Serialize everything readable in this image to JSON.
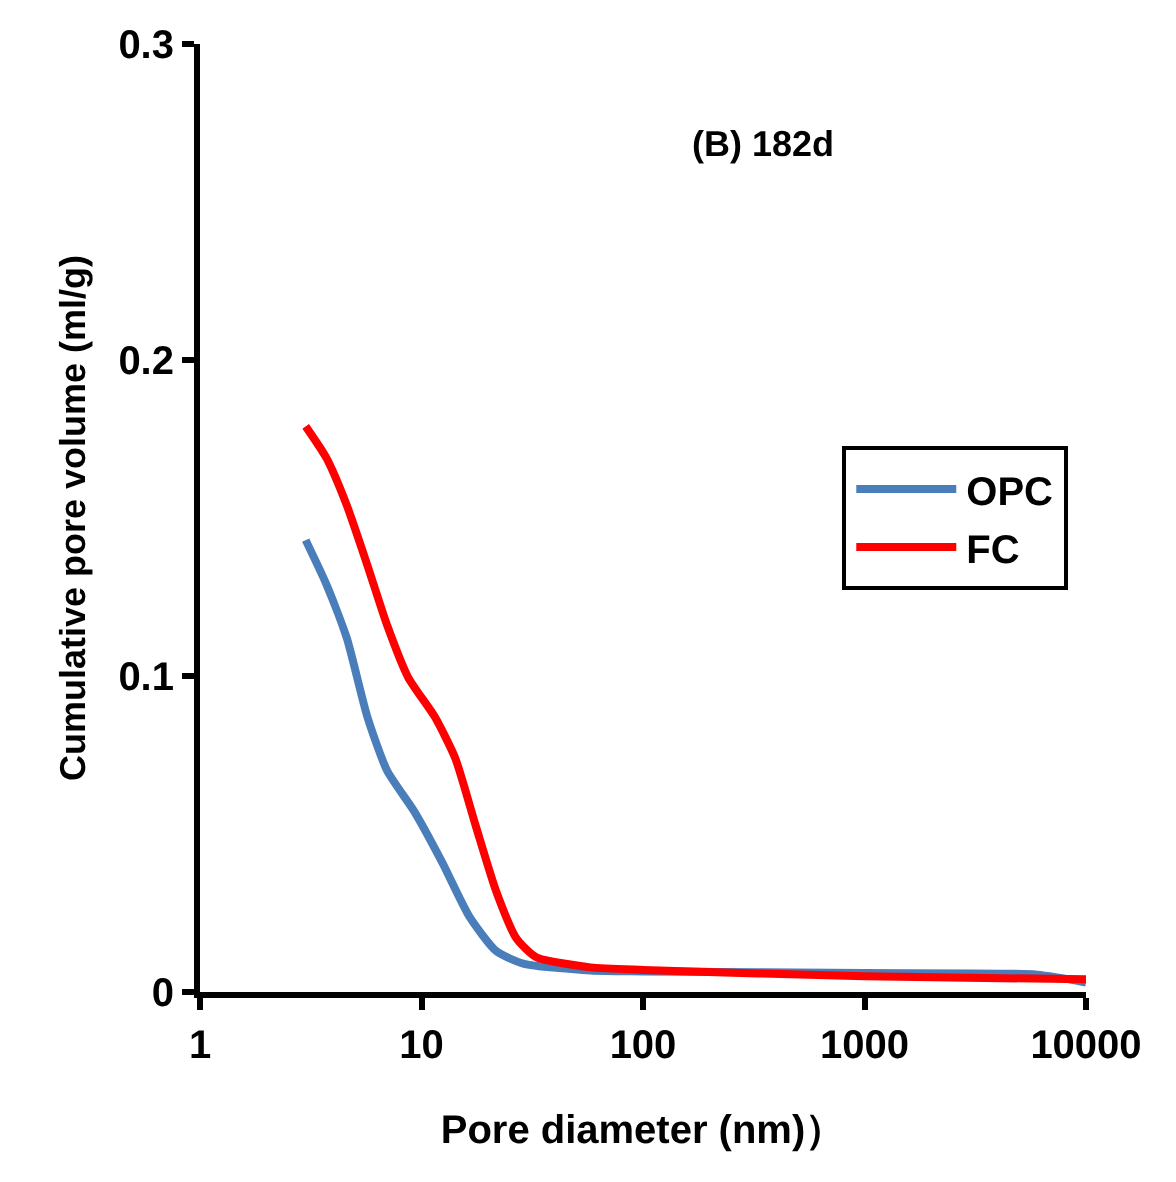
{
  "chart_data": {
    "type": "line",
    "xlabel": "Pore diameter (nm)）",
    "ylabel": "Cumulative pore volume (ml/g)",
    "log": "x",
    "xlim": [
      1,
      10000
    ],
    "xticks": [
      1,
      10,
      100,
      1000,
      10000
    ],
    "ylim": [
      0,
      0.3
    ],
    "yticks": [
      0,
      0.1,
      0.2,
      0.3
    ],
    "legend": "right",
    "marker": "none",
    "line_style": "solid",
    "annotations": [
      "(B) 182d"
    ],
    "series": [
      {
        "name": "OPC",
        "color": "#4a7ebb",
        "x": [
          3,
          3.72,
          4.6,
          5.7,
          7.0,
          9.3,
          12.4,
          16.4,
          21.7,
          28.8,
          58,
          100,
          1000,
          6000,
          10000
        ],
        "values": [
          0.143,
          0.129,
          0.112,
          0.087,
          0.07,
          0.057,
          0.041,
          0.024,
          0.013,
          0.009,
          0.0068,
          0.0065,
          0.006,
          0.0055,
          0.003
        ]
      },
      {
        "name": "FC",
        "color": "#ff0000",
        "x": [
          3,
          3.72,
          4.6,
          5.7,
          7.0,
          8.7,
          11.5,
          14.2,
          17.5,
          21.7,
          26.8,
          33,
          58,
          100,
          1000,
          10000
        ],
        "values": [
          0.179,
          0.169,
          0.154,
          0.135,
          0.116,
          0.0996,
          0.087,
          0.074,
          0.053,
          0.032,
          0.017,
          0.011,
          0.0078,
          0.007,
          0.005,
          0.004
        ]
      }
    ]
  }
}
